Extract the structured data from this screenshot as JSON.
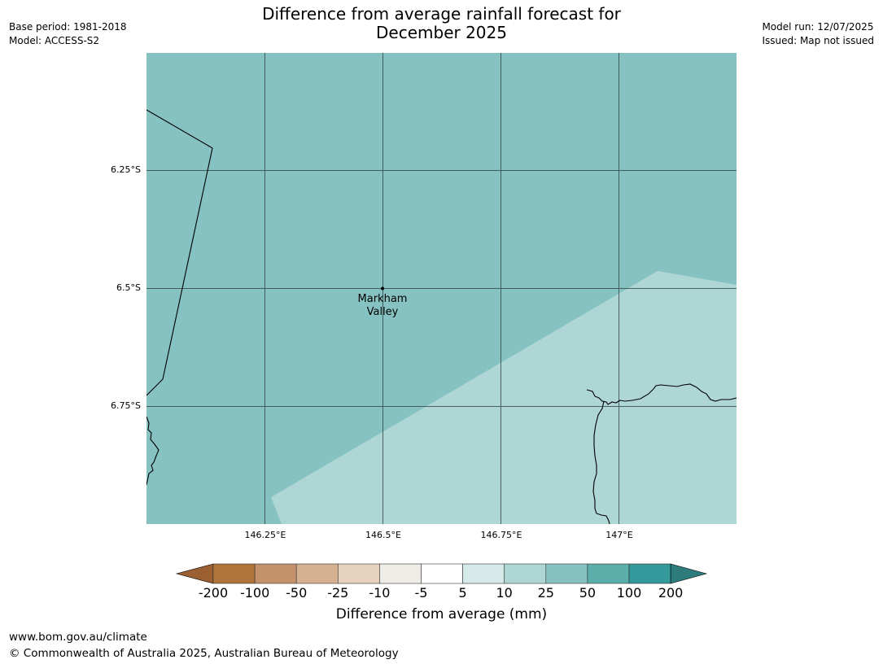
{
  "header": {
    "title_line1": "Difference from average rainfall forecast for",
    "title_line2": "December 2025",
    "base_period": "Base period: 1981-2018",
    "model": "Model: ACCESS-S2",
    "model_run": "Model run: 12/07/2025",
    "issued": "Issued: Map not issued"
  },
  "map": {
    "lat_labels": [
      "6.25°S",
      "6.5°S",
      "6.75°S"
    ],
    "lon_labels": [
      "146.25°E",
      "146.5°E",
      "146.75°E",
      "147°E"
    ],
    "location": {
      "name_line1": "Markham",
      "name_line2": "Valley",
      "lat": -6.5,
      "lon": 146.5
    },
    "colors": {
      "region_25_50": "#86c2c1",
      "region_10_25": "#aed6d5",
      "grid": "#2a3a3a",
      "coastline": "#000000"
    }
  },
  "colorbar": {
    "title": "Difference from average (mm)",
    "ticks": [
      "-200",
      "-100",
      "-50",
      "-25",
      "-10",
      "-5",
      "5",
      "10",
      "25",
      "50",
      "100",
      "200"
    ],
    "colors": [
      "#9b5f31",
      "#b0753b",
      "#c3926a",
      "#d5b191",
      "#e6d1bf",
      "#efebe6",
      "#ffffff",
      "#d6ebe9",
      "#aed6d5",
      "#86c2c1",
      "#5caeab",
      "#33999a",
      "#2d7b7b"
    ]
  },
  "footer": {
    "url": "www.bom.gov.au/climate",
    "copyright": "© Commonwealth of Australia 2025, Australian Bureau of Meteorology"
  }
}
